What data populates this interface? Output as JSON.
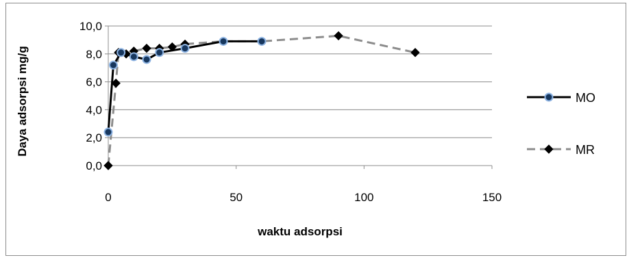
{
  "chart_data": {
    "type": "line",
    "title": "",
    "xlabel": "waktu adsorpsi",
    "ylabel": "Daya adsorpsi mg/g",
    "xlim": [
      0,
      150
    ],
    "ylim": [
      0,
      10
    ],
    "x_ticks": [
      0,
      50,
      100,
      150
    ],
    "x_tick_labels": [
      "0",
      "50",
      "100",
      "150"
    ],
    "y_ticks": [
      0,
      2,
      4,
      6,
      8,
      10
    ],
    "y_tick_labels": [
      "0,0",
      "2,0",
      "4,0",
      "6,0",
      "8,0",
      "10,0"
    ],
    "grid": "horizontal",
    "legend_position": "right",
    "series": [
      {
        "name": "MO",
        "line_color": "#000000",
        "line_style": "solid",
        "marker": "circle",
        "marker_fill": "#17375e",
        "marker_stroke": "#8db3e2",
        "points": [
          {
            "x": 0,
            "y": 2.4
          },
          {
            "x": 2,
            "y": 7.2
          },
          {
            "x": 5,
            "y": 8.1
          },
          {
            "x": 10,
            "y": 7.8
          },
          {
            "x": 15,
            "y": 7.6
          },
          {
            "x": 20,
            "y": 8.1
          },
          {
            "x": 30,
            "y": 8.4
          },
          {
            "x": 45,
            "y": 8.9
          },
          {
            "x": 60,
            "y": 8.9
          }
        ]
      },
      {
        "name": "MR",
        "line_color": "#8c8c8c",
        "line_style": "dashed",
        "marker": "diamond",
        "marker_fill": "#000000",
        "marker_stroke": "#000000",
        "points": [
          {
            "x": 0,
            "y": 0.0
          },
          {
            "x": 3,
            "y": 5.9
          },
          {
            "x": 4,
            "y": 8.1
          },
          {
            "x": 7,
            "y": 8.0
          },
          {
            "x": 10,
            "y": 8.2
          },
          {
            "x": 15,
            "y": 8.4
          },
          {
            "x": 20,
            "y": 8.4
          },
          {
            "x": 25,
            "y": 8.5
          },
          {
            "x": 30,
            "y": 8.7
          },
          {
            "x": 45,
            "y": 8.9
          },
          {
            "x": 60,
            "y": 8.9
          },
          {
            "x": 90,
            "y": 9.3
          },
          {
            "x": 120,
            "y": 8.1
          }
        ]
      }
    ]
  }
}
